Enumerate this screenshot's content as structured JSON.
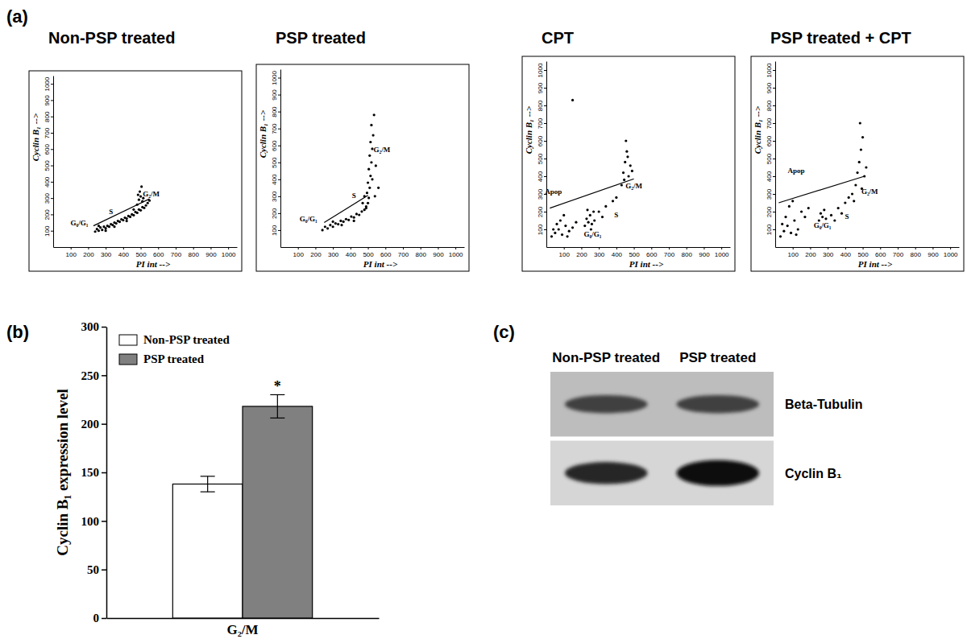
{
  "chart_data": [
    {
      "type": "scatter",
      "panel_label": "(a)",
      "title": "Non-PSP treated",
      "xlabel": "PI int -->",
      "ylabel": "Cyclin B₁ -->",
      "xlim": [
        0,
        1050
      ],
      "ylim": [
        0,
        1050
      ],
      "xticks": [
        100,
        200,
        300,
        400,
        500,
        600,
        700,
        800,
        900,
        1000
      ],
      "yticks": [
        100,
        200,
        300,
        400,
        500,
        600,
        700,
        800,
        900,
        1000
      ],
      "color": "#000000",
      "marker": "circle",
      "x": [
        240,
        250,
        260,
        270,
        280,
        290,
        300,
        310,
        320,
        330,
        340,
        350,
        360,
        370,
        380,
        390,
        400,
        410,
        420,
        430,
        440,
        450,
        460,
        470,
        480,
        490,
        500,
        510,
        520,
        530,
        480,
        490,
        500,
        510,
        495,
        505,
        485,
        515,
        540,
        550,
        260,
        300,
        350,
        420,
        460
      ],
      "values": [
        95,
        110,
        100,
        120,
        105,
        125,
        115,
        130,
        125,
        140,
        135,
        150,
        145,
        160,
        155,
        170,
        165,
        180,
        175,
        190,
        185,
        200,
        195,
        215,
        210,
        230,
        225,
        245,
        240,
        255,
        260,
        290,
        310,
        280,
        340,
        370,
        320,
        300,
        270,
        285,
        130,
        100,
        125,
        160,
        230
      ],
      "gate": {
        "x": [
          230,
          550
        ],
        "y": [
          130,
          295
        ]
      },
      "annotations": [
        {
          "text": "G₀/G₁",
          "x": 150,
          "y": 135
        },
        {
          "text": "S",
          "x": 330,
          "y": 200
        },
        {
          "text": "G₂/M",
          "x": 560,
          "y": 310
        }
      ]
    },
    {
      "type": "scatter",
      "title": "PSP treated",
      "xlabel": "PI int -->",
      "ylabel": "Cyclin B₁ -->",
      "xlim": [
        0,
        1050
      ],
      "ylim": [
        0,
        1050
      ],
      "xticks": [
        100,
        200,
        300,
        400,
        500,
        600,
        700,
        800,
        900,
        1000
      ],
      "yticks": [
        100,
        200,
        300,
        400,
        500,
        600,
        700,
        800,
        900,
        1000
      ],
      "color": "#000000",
      "marker": "circle",
      "x": [
        240,
        255,
        270,
        285,
        300,
        315,
        330,
        345,
        360,
        375,
        390,
        405,
        420,
        435,
        450,
        465,
        480,
        490,
        500,
        505,
        495,
        510,
        500,
        515,
        505,
        520,
        510,
        525,
        515,
        530,
        520,
        535,
        480,
        470,
        525,
        545,
        490,
        300,
        350,
        420,
        540,
        560
      ],
      "values": [
        100,
        120,
        110,
        130,
        120,
        140,
        135,
        155,
        150,
        165,
        160,
        180,
        175,
        195,
        190,
        210,
        220,
        240,
        260,
        290,
        320,
        350,
        380,
        420,
        460,
        500,
        540,
        580,
        620,
        660,
        720,
        780,
        300,
        260,
        400,
        480,
        230,
        150,
        130,
        155,
        300,
        350
      ],
      "gate": {
        "x": [
          250,
          500
        ],
        "y": [
          145,
          305
        ]
      },
      "annotations": [
        {
          "text": "G₀/G₁",
          "x": 160,
          "y": 150
        },
        {
          "text": "S",
          "x": 420,
          "y": 290
        },
        {
          "text": "G₂/M",
          "x": 580,
          "y": 560
        }
      ]
    },
    {
      "type": "scatter",
      "title": "CPT",
      "xlabel": "PI int -->",
      "ylabel": "Cyclin B₁ -->",
      "xlim": [
        0,
        1050
      ],
      "ylim": [
        0,
        1050
      ],
      "xticks": [
        100,
        200,
        300,
        400,
        500,
        600,
        700,
        800,
        900,
        1000
      ],
      "yticks": [
        100,
        200,
        300,
        400,
        500,
        600,
        700,
        800,
        900,
        1000
      ],
      "color": "#000000",
      "marker": "circle",
      "x": [
        30,
        50,
        70,
        90,
        110,
        60,
        130,
        150,
        80,
        40,
        100,
        170,
        120,
        220,
        230,
        240,
        250,
        260,
        270,
        235,
        255,
        275,
        300,
        340,
        380,
        320,
        400,
        430,
        440,
        450,
        460,
        470,
        455,
        480,
        445,
        490,
        465,
        150
      ],
      "values": [
        60,
        80,
        100,
        70,
        120,
        130,
        90,
        110,
        150,
        100,
        180,
        140,
        60,
        120,
        160,
        140,
        180,
        130,
        200,
        210,
        100,
        150,
        200,
        230,
        260,
        170,
        280,
        350,
        420,
        480,
        540,
        400,
        600,
        460,
        380,
        430,
        510,
        830
      ],
      "gate": {
        "x": [
          20,
          500
        ],
        "y": [
          220,
          385
        ]
      },
      "annotations": [
        {
          "text": "Apop",
          "x": 40,
          "y": 300
        },
        {
          "text": "G₀/G₁",
          "x": 265,
          "y": 60
        },
        {
          "text": "S",
          "x": 400,
          "y": 170
        },
        {
          "text": "G₂/M",
          "x": 500,
          "y": 330
        }
      ]
    },
    {
      "type": "scatter",
      "title": "PSP treated + CPT",
      "xlabel": "PI int -->",
      "ylabel": "Cyclin B₁ -->",
      "xlim": [
        0,
        1050
      ],
      "ylim": [
        0,
        1050
      ],
      "xticks": [
        100,
        200,
        300,
        400,
        500,
        600,
        700,
        800,
        900,
        1000
      ],
      "yticks": [
        100,
        200,
        300,
        400,
        500,
        600,
        700,
        800,
        900,
        1000
      ],
      "color": "#000000",
      "marker": "circle",
      "x": [
        30,
        50,
        70,
        90,
        110,
        60,
        130,
        150,
        80,
        40,
        100,
        170,
        120,
        190,
        250,
        260,
        270,
        280,
        290,
        320,
        360,
        400,
        340,
        420,
        380,
        440,
        460,
        470,
        480,
        490,
        500,
        485,
        510,
        450,
        495,
        520
      ],
      "values": [
        60,
        90,
        120,
        80,
        150,
        170,
        100,
        200,
        230,
        130,
        260,
        170,
        70,
        220,
        150,
        190,
        170,
        210,
        160,
        180,
        220,
        250,
        150,
        280,
        190,
        300,
        350,
        420,
        480,
        550,
        620,
        700,
        400,
        260,
        330,
        450
      ],
      "gate": {
        "x": [
          20,
          510
        ],
        "y": [
          250,
          400
        ]
      },
      "annotations": [
        {
          "text": "Apop",
          "x": 120,
          "y": 420
        },
        {
          "text": "G₀/G₁",
          "x": 270,
          "y": 110
        },
        {
          "text": "S",
          "x": 410,
          "y": 160
        },
        {
          "text": "G₂/M",
          "x": 540,
          "y": 300
        }
      ]
    },
    {
      "type": "bar",
      "panel_label": "(b)",
      "ylabel": "Cyclin B₁ expression level",
      "categories": [
        "G₂/M"
      ],
      "series": [
        {
          "name": "Non-PSP treated",
          "color": "#ffffff",
          "values": [
            138
          ],
          "errors": [
            8
          ]
        },
        {
          "name": "PSP treated",
          "color": "#808080",
          "values": [
            218
          ],
          "errors": [
            12
          ]
        }
      ],
      "ylim": [
        0,
        300
      ],
      "yticks": [
        0,
        50,
        100,
        150,
        200,
        250,
        300
      ],
      "legend": "upper left",
      "annotations": [
        {
          "text": "*",
          "series": "PSP treated",
          "category": "G₂/M"
        }
      ]
    },
    {
      "type": "blot",
      "panel_label": "(c)",
      "lanes": [
        "Non-PSP treated",
        "PSP treated"
      ],
      "bands": [
        {
          "name": "Beta-Tubulin",
          "values": [
            0.7,
            0.7
          ]
        },
        {
          "name": "Cyclin B₁",
          "values": [
            0.85,
            1.0
          ]
        }
      ]
    }
  ]
}
